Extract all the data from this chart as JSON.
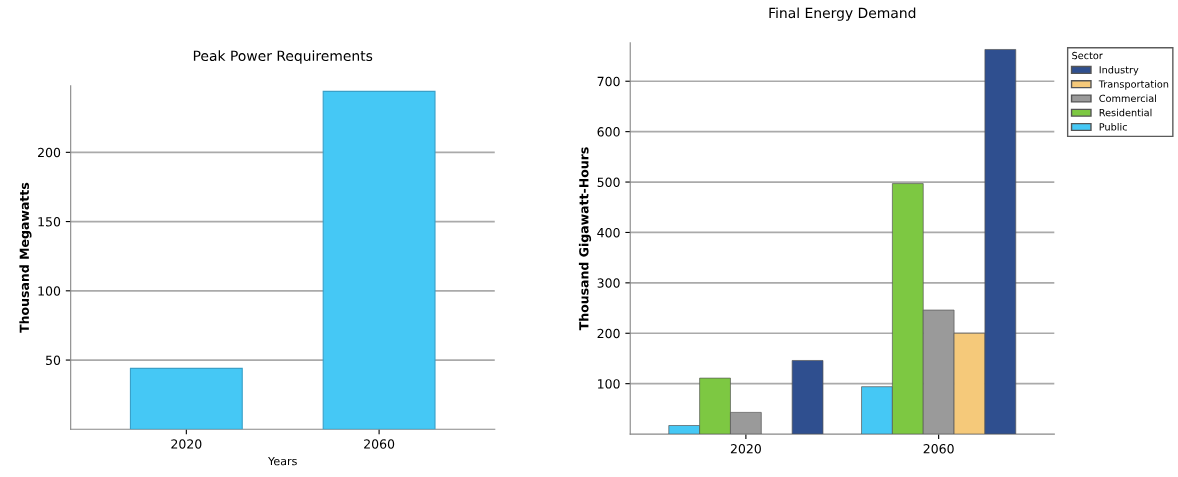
{
  "chart_data": [
    {
      "type": "bar",
      "title": "Peak Power Requirements",
      "xlabel": "Years",
      "ylabel": "Thousand Megawatts",
      "categories": [
        "2020",
        "2060"
      ],
      "values": [
        44,
        244
      ],
      "color": "#45c8f5",
      "ylim": [
        0,
        248
      ],
      "yticks": [
        50,
        100,
        150,
        200
      ],
      "grid": "y",
      "legend": false
    },
    {
      "type": "bar",
      "title": "Final Energy Demand",
      "ylabel": "Thousand Gigawatt-Hours",
      "categories": [
        "2020",
        "2060"
      ],
      "legend_title": "Sector",
      "legend": "top right",
      "series": [
        {
          "name": "Public",
          "color": "#45c8f5",
          "values": [
            17,
            94
          ]
        },
        {
          "name": "Residential",
          "color": "#7dc842",
          "values": [
            111,
            497
          ]
        },
        {
          "name": "Commercial",
          "color": "#9a9a9a",
          "values": [
            43,
            246
          ]
        },
        {
          "name": "Transportation",
          "color": "#f5c97a",
          "values": [
            null,
            200
          ]
        },
        {
          "name": "Industry",
          "color": "#2f4f8f",
          "values": [
            146,
            763
          ]
        }
      ],
      "ylim": [
        0,
        776
      ],
      "yticks": [
        100,
        200,
        300,
        400,
        500,
        600,
        700
      ],
      "grid": "y"
    }
  ]
}
